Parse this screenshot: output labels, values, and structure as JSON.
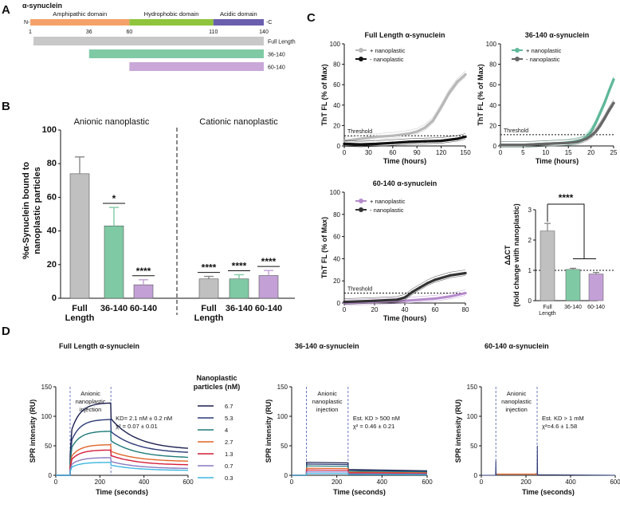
{
  "panel_labels": {
    "a": "A",
    "b": "B",
    "c": "C",
    "d": "D"
  },
  "domain_map": {
    "title": "α-synuclein",
    "n_label": "N-",
    "c_label": "-C",
    "domains": [
      {
        "label": "Amphipathic domain",
        "start": 1,
        "end": 60,
        "color": "#f5a16a"
      },
      {
        "label": "Hydrophobic domain",
        "start": 60,
        "end": 110,
        "color": "#8fc43c"
      },
      {
        "label": "Acidic domain",
        "start": 110,
        "end": 140,
        "color": "#6a5fae"
      }
    ],
    "ticks": [
      "1",
      "36",
      "60",
      "110",
      "140"
    ],
    "constructs": [
      {
        "label": "Full Length",
        "start": 1,
        "end": 140,
        "color": "#c8c8c8"
      },
      {
        "label": "36-140",
        "start": 36,
        "end": 140,
        "color": "#7fcaa5"
      },
      {
        "label": "60-140",
        "start": 60,
        "end": 140,
        "color": "#c9a7d8"
      }
    ]
  },
  "chart_data": [
    {
      "id": "B",
      "type": "bar",
      "ylabel": "%α-Synuclein bound to nanoplastic particles",
      "ylim": [
        0,
        100
      ],
      "yticks": [
        "0",
        "20",
        "40",
        "60",
        "80",
        "100"
      ],
      "groups": [
        {
          "label": "Anionic nanoplastic",
          "categories": [
            "Full Length",
            "36-140",
            "60-140"
          ],
          "values": [
            74,
            43,
            8
          ],
          "errors": [
            10,
            11,
            3
          ],
          "significance": [
            "",
            "*",
            "****"
          ]
        },
        {
          "label": "Cationic nanoplastic",
          "categories": [
            "Full Length",
            "36-140",
            "60-140"
          ],
          "values": [
            11.5,
            11.5,
            13.5
          ],
          "errors": [
            1.5,
            2.5,
            3
          ],
          "significance": [
            "****",
            "****",
            "****"
          ]
        }
      ],
      "colors": [
        "#c0c0c0",
        "#7fcaa5",
        "#c3a0d6"
      ]
    },
    {
      "id": "C1",
      "type": "line",
      "title": "Full Length α-synuclein",
      "xlabel": "Time (hours)",
      "ylabel": "ThT FL (% of Max)",
      "xlim": [
        0,
        150
      ],
      "ylim": [
        0,
        100
      ],
      "xticks": [
        "0",
        "30",
        "60",
        "90",
        "120",
        "150"
      ],
      "yticks": [
        "0",
        "20",
        "40",
        "60",
        "80",
        "100"
      ],
      "threshold_label": "Threshold",
      "threshold": 10,
      "series": [
        {
          "name": "+ nanoplastic",
          "color": "#b8b8b8",
          "x": [
            0,
            20,
            40,
            60,
            80,
            90,
            100,
            110,
            120,
            130,
            140,
            150
          ],
          "y": [
            5,
            7,
            9,
            10,
            12,
            14,
            18,
            25,
            38,
            52,
            63,
            70
          ]
        },
        {
          "name": "- nanoplastic",
          "color": "#111111",
          "x": [
            0,
            20,
            40,
            60,
            80,
            100,
            120,
            140,
            150
          ],
          "y": [
            2,
            1.5,
            2,
            3,
            4,
            4.5,
            5,
            7,
            9
          ]
        }
      ]
    },
    {
      "id": "C2",
      "type": "line",
      "title": "36-140 α-synuclein",
      "xlabel": "Time (hours)",
      "ylabel": "ThT FL (% of Max)",
      "xlim": [
        0,
        25
      ],
      "ylim": [
        0,
        100
      ],
      "xticks": [
        "0",
        "5",
        "10",
        "15",
        "20",
        "25"
      ],
      "yticks": [
        "0",
        "20",
        "40",
        "60",
        "80",
        "100"
      ],
      "threshold_label": "Threshold",
      "threshold": 11,
      "series": [
        {
          "name": "+ nanoplastic",
          "color": "#5fb89a",
          "x": [
            0,
            5,
            10,
            14,
            16,
            18,
            19,
            20,
            21,
            22,
            23,
            24,
            25
          ],
          "y": [
            1,
            1,
            2,
            3,
            4,
            6,
            9,
            14,
            22,
            32,
            42,
            54,
            65
          ]
        },
        {
          "name": "- nanoplastic",
          "color": "#666666",
          "x": [
            0,
            5,
            10,
            15,
            17,
            19,
            20,
            21,
            22,
            23,
            24,
            25
          ],
          "y": [
            1,
            1,
            2,
            3,
            4,
            7,
            10,
            14,
            20,
            27,
            35,
            42
          ]
        }
      ]
    },
    {
      "id": "C3",
      "type": "line",
      "title": "60-140 α-synuclein",
      "xlabel": "Time (hours)",
      "ylabel": "ThT FL (% of Max)",
      "xlim": [
        0,
        80
      ],
      "ylim": [
        0,
        100
      ],
      "xticks": [
        "0",
        "20",
        "40",
        "60",
        "80"
      ],
      "yticks": [
        "0",
        "20",
        "40",
        "60",
        "80",
        "100"
      ],
      "threshold_label": "Threshold",
      "threshold": 9,
      "series": [
        {
          "name": "+ nanoplastic",
          "color": "#b58bcc",
          "x": [
            0,
            20,
            40,
            50,
            60,
            70,
            80
          ],
          "y": [
            0,
            1,
            2,
            3,
            4,
            6,
            9
          ]
        },
        {
          "name": "- nanoplastic",
          "color": "#333333",
          "x": [
            0,
            20,
            35,
            40,
            45,
            50,
            55,
            60,
            70,
            80
          ],
          "y": [
            1,
            2,
            3,
            5,
            10,
            14,
            18,
            21,
            25,
            27
          ]
        }
      ]
    },
    {
      "id": "C4",
      "type": "bar",
      "ylabel_main": "ΔΔCT",
      "ylabel_sub": "(fold change with nanoplastic)",
      "ylim": [
        0,
        3
      ],
      "yticks": [
        "0",
        "1",
        "2",
        "3"
      ],
      "reference": 1,
      "categories": [
        "Full Length",
        "36-140",
        "60-140"
      ],
      "values": [
        2.3,
        1.03,
        0.88
      ],
      "errors": [
        0.25,
        0.04,
        0.05
      ],
      "colors": [
        "#c0c0c0",
        "#7fcaa5",
        "#c3a0d6"
      ],
      "significance": "****"
    },
    {
      "id": "D1",
      "type": "line",
      "title": "Full Length α-synuclein",
      "xlabel": "Time (seconds)",
      "ylabel": "SPR intensity (RU)",
      "xlim": [
        0,
        600
      ],
      "ylim": [
        0,
        150
      ],
      "xticks": [
        "0",
        "200",
        "400",
        "600"
      ],
      "yticks": [
        "0",
        "50",
        "100",
        "150"
      ],
      "injection_label": [
        "Anionic",
        "nanoplastic",
        "injection"
      ],
      "injection_window": [
        65,
        250
      ],
      "annotation_line1": "KD= 2.1 nM ± 0.2 nM",
      "annotation_line2": "χ² = 0.07 ± 0.01",
      "legend_title": [
        "Nanoplastic",
        "particles (nM)"
      ],
      "series": [
        {
          "name": "6.7",
          "color": "#1a1f4d",
          "peak": 123,
          "end": 43
        },
        {
          "name": "5.3",
          "color": "#2c3a78",
          "peak": 95,
          "end": 37
        },
        {
          "name": "4",
          "color": "#1f7a7a",
          "peak": 75,
          "end": 29
        },
        {
          "name": "2.7",
          "color": "#e0652a",
          "peak": 52,
          "end": 23
        },
        {
          "name": "1.3",
          "color": "#d41c3a",
          "peak": 43,
          "end": 17
        },
        {
          "name": "0.7",
          "color": "#8a7ac0",
          "peak": 30,
          "end": 11
        },
        {
          "name": "0.3",
          "color": "#3fb6e0",
          "peak": 22,
          "end": 8
        }
      ]
    },
    {
      "id": "D2",
      "type": "line",
      "title": "36-140 α-synuclein",
      "xlabel": "Time (seconds)",
      "ylabel": "SPR intensity (RU)",
      "xlim": [
        0,
        600
      ],
      "ylim": [
        0,
        150
      ],
      "xticks": [
        "0",
        "200",
        "400",
        "600"
      ],
      "yticks": [
        "0",
        "50",
        "100",
        "150"
      ],
      "injection_label": [
        "Anionic",
        "nanoplastic",
        "injection"
      ],
      "injection_window": [
        65,
        250
      ],
      "annotation_line1": "Est. KD > 500 nM",
      "annotation_line2": "χ² = 0.46 ± 0.21",
      "levels": [
        22,
        19,
        16,
        12,
        9,
        6,
        3
      ]
    },
    {
      "id": "D3",
      "type": "line",
      "title": "60-140 α-synuclein",
      "xlabel": "Time (seconds)",
      "ylabel": "SPR intensity (RU)",
      "xlim": [
        0,
        600
      ],
      "ylim": [
        0,
        150
      ],
      "xticks": [
        "0",
        "200",
        "400",
        "600"
      ],
      "yticks": [
        "0",
        "50",
        "100",
        "150"
      ],
      "injection_label": [
        "Anionic",
        "nanoplastic",
        "injection"
      ],
      "injection_window": [
        65,
        250
      ],
      "annotation_line1": "Est. KD > 1 mM",
      "annotation_line2": "χ²=4.6 ± 1.58"
    }
  ]
}
